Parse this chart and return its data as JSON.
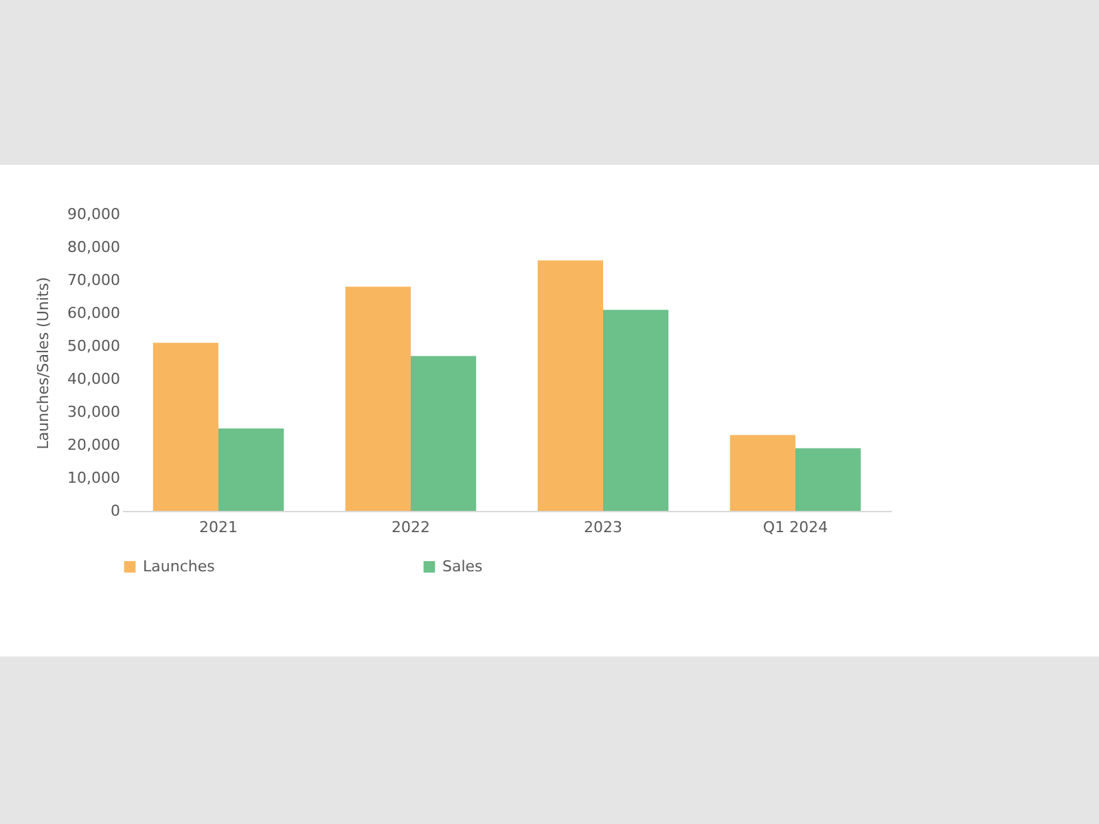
{
  "chart_data": {
    "type": "bar",
    "ylabel": "Launches/Sales (Units)",
    "categories": [
      "2021",
      "2022",
      "2023",
      "Q1 2024"
    ],
    "series": [
      {
        "name": "Launches",
        "color": "#f8b75e",
        "values": [
          51000,
          68000,
          76000,
          23000
        ]
      },
      {
        "name": "Sales",
        "color": "#6cc08a",
        "values": [
          25000,
          47000,
          61000,
          19000
        ]
      }
    ],
    "ylim": [
      0,
      90000
    ],
    "yticks": [
      0,
      {
        "value": 10000,
        "label": "10,000"
      },
      {
        "value": 20000,
        "label": "20,000"
      },
      {
        "value": 30000,
        "label": "30,000"
      },
      {
        "value": 40000,
        "label": "40,000"
      },
      {
        "value": 50000,
        "label": "50,000"
      },
      {
        "value": 60000,
        "label": "60,000"
      },
      {
        "value": 70000,
        "label": "70,000"
      },
      {
        "value": 80000,
        "label": "80,000"
      },
      {
        "value": 90000,
        "label": "90,000"
      }
    ],
    "grid": false,
    "legend": "bottom"
  }
}
